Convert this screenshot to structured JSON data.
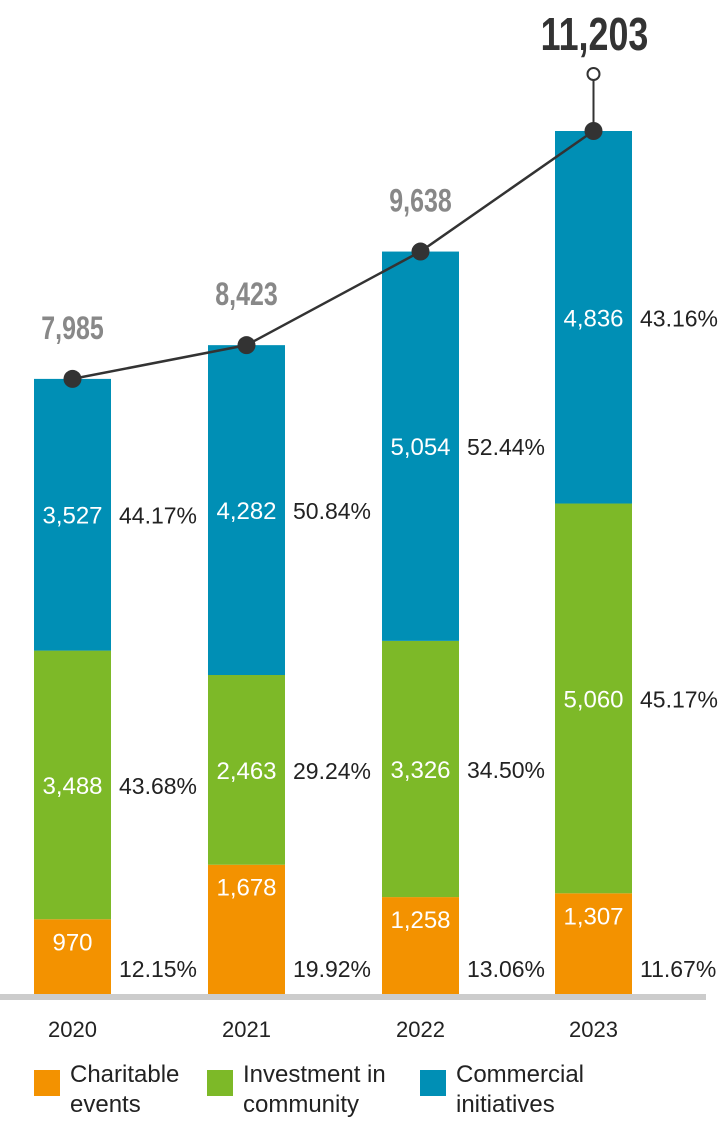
{
  "chart_data": {
    "type": "bar",
    "stacked": true,
    "categories": [
      "2020",
      "2021",
      "2022",
      "2023"
    ],
    "series": [
      {
        "name": "Charitable events",
        "color": "#f39200",
        "values": [
          970,
          1678,
          1258,
          1307
        ],
        "value_labels": [
          "970",
          "1,678",
          "1,258",
          "1,307"
        ],
        "percent_labels": [
          "12.15%",
          "19.92%",
          "13.06%",
          "11.67%"
        ]
      },
      {
        "name": "Investment in community",
        "color": "#7db928",
        "values": [
          3488,
          2463,
          3326,
          5060
        ],
        "value_labels": [
          "3,488",
          "2,463",
          "3,326",
          "5,060"
        ],
        "percent_labels": [
          "43.68%",
          "29.24%",
          "34.50%",
          "45.17%"
        ]
      },
      {
        "name": "Commercial initiatives",
        "color": "#008fb5",
        "values": [
          3527,
          4282,
          5054,
          4836
        ],
        "value_labels": [
          "3,527",
          "4,282",
          "5,054",
          "4,836"
        ],
        "percent_labels": [
          "44.17%",
          "50.84%",
          "52.44%",
          "43.16%"
        ]
      }
    ],
    "totals": [
      7985,
      8423,
      9638,
      11203
    ],
    "total_labels": [
      "7,985",
      "8,423",
      "9,638",
      "11,203"
    ],
    "line_color": "#333333",
    "total_label_color": "#888888",
    "highlight_total_color": "#333333",
    "axis_color": "#cccccc",
    "ylim": [
      0,
      11203
    ],
    "legend_position": "bottom",
    "title": "",
    "xlabel": "",
    "ylabel": ""
  }
}
